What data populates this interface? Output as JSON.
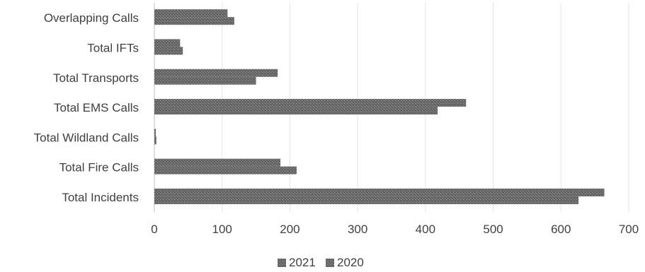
{
  "chart_data": {
    "type": "bar",
    "orientation": "horizontal",
    "categories": [
      "Overlapping Calls",
      "Total IFTs",
      "Total Transports",
      "Total EMS Calls",
      "Total Wildland Calls",
      "Total Fire Calls",
      "Total Incidents"
    ],
    "series": [
      {
        "name": "2021",
        "values": [
          108,
          38,
          182,
          460,
          2,
          186,
          664
        ],
        "color": "#6e6e6e"
      },
      {
        "name": "2020",
        "values": [
          118,
          42,
          150,
          418,
          3,
          210,
          626
        ],
        "color": "#5a5a5a"
      }
    ],
    "xlim": [
      0,
      700
    ],
    "xticks": [
      "0",
      "100",
      "200",
      "300",
      "400",
      "500",
      "600",
      "700"
    ],
    "grid": true,
    "legend_position": "bottom"
  }
}
